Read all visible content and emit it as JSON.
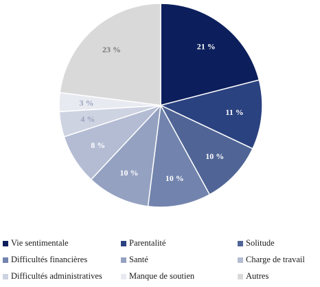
{
  "chart_data": {
    "type": "pie",
    "title": "",
    "slices": [
      {
        "name": "Vie sentimentale",
        "value": 21,
        "label": "21 %",
        "color": "#0c1f5c"
      },
      {
        "name": "Parentalité",
        "value": 11,
        "label": "11 %",
        "color": "#2b4280"
      },
      {
        "name": "Solitude",
        "value": 10,
        "label": "10 %",
        "color": "#506596"
      },
      {
        "name": "Difficultés financières",
        "value": 10,
        "label": "10 %",
        "color": "#7284ad"
      },
      {
        "name": "Santé",
        "value": 10,
        "label": "10 %",
        "color": "#94a1c1"
      },
      {
        "name": "Charge de travail",
        "value": 8,
        "label": "8 %",
        "color": "#b3bcd3"
      },
      {
        "name": "Difficultés administratives",
        "value": 4,
        "label": "4 %",
        "color": "#ced3e2"
      },
      {
        "name": "Manque de soutien",
        "value": 3,
        "label": "3 %",
        "color": "#e8eaf1"
      },
      {
        "name": "Autres",
        "value": 23,
        "label": "23 %",
        "color": "#d9d9d9"
      }
    ],
    "legend_position": "bottom"
  }
}
